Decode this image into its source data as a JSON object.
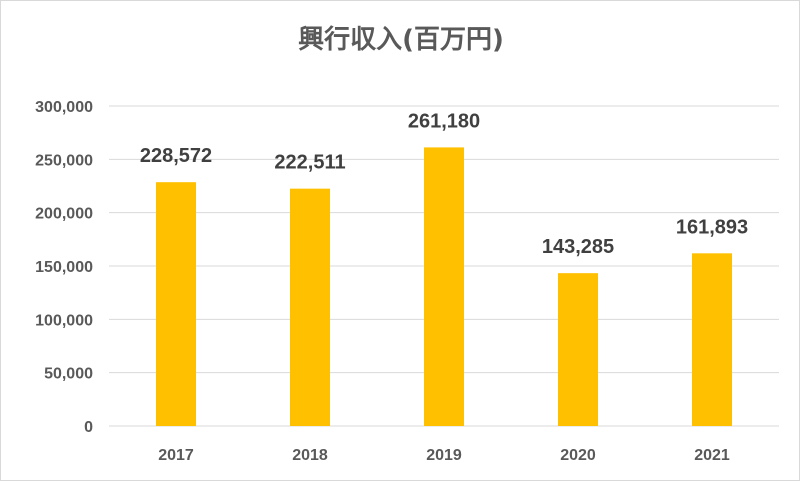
{
  "chart_data": {
    "type": "bar",
    "title": "興行収入(百万円)",
    "categories": [
      "2017",
      "2018",
      "2019",
      "2020",
      "2021"
    ],
    "values": [
      228572,
      222511,
      261180,
      143285,
      161893
    ],
    "value_labels": [
      "228,572",
      "222,511",
      "261,180",
      "143,285",
      "161,893"
    ],
    "ylim": [
      0,
      300000
    ],
    "yticks": [
      0,
      50000,
      100000,
      150000,
      200000,
      250000,
      300000
    ],
    "ytick_labels": [
      "0",
      "50,000",
      "100,000",
      "150,000",
      "200,000",
      "250,000",
      "300,000"
    ],
    "xlabel": "",
    "ylabel": "",
    "grid": true,
    "legend": "none",
    "bar_color": "#FFC000",
    "grid_color": "#d9d9d9"
  }
}
